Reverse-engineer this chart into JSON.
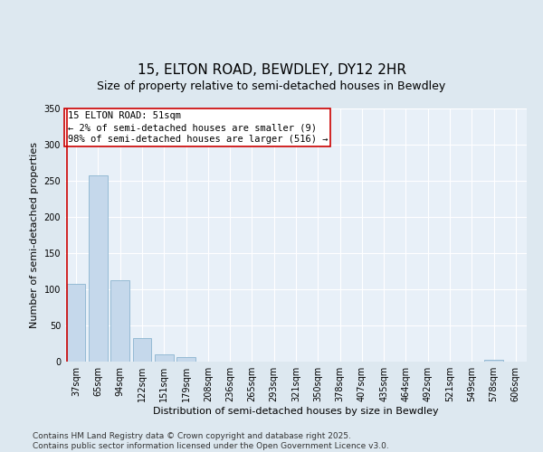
{
  "title": "15, ELTON ROAD, BEWDLEY, DY12 2HR",
  "subtitle": "Size of property relative to semi-detached houses in Bewdley",
  "xlabel": "Distribution of semi-detached houses by size in Bewdley",
  "ylabel": "Number of semi-detached properties",
  "categories": [
    "37sqm",
    "65sqm",
    "94sqm",
    "122sqm",
    "151sqm",
    "179sqm",
    "208sqm",
    "236sqm",
    "265sqm",
    "293sqm",
    "321sqm",
    "350sqm",
    "378sqm",
    "407sqm",
    "435sqm",
    "464sqm",
    "492sqm",
    "521sqm",
    "549sqm",
    "578sqm",
    "606sqm"
  ],
  "values": [
    108,
    257,
    112,
    32,
    10,
    6,
    0,
    0,
    0,
    0,
    0,
    0,
    0,
    0,
    0,
    0,
    0,
    0,
    0,
    3,
    0
  ],
  "bar_color": "#c5d8eb",
  "bar_edge_color": "#8ab4cf",
  "subject_bar_index": 0,
  "subject_line_color": "#cc0000",
  "annotation_text": "15 ELTON ROAD: 51sqm\n← 2% of semi-detached houses are smaller (9)\n98% of semi-detached houses are larger (516) →",
  "annotation_box_color": "#ffffff",
  "annotation_box_edge_color": "#cc0000",
  "ylim": [
    0,
    350
  ],
  "yticks": [
    0,
    50,
    100,
    150,
    200,
    250,
    300,
    350
  ],
  "footer": "Contains HM Land Registry data © Crown copyright and database right 2025.\nContains public sector information licensed under the Open Government Licence v3.0.",
  "bg_color": "#dde8f0",
  "plot_bg_color": "#e8f0f8",
  "grid_color": "#ffffff",
  "title_fontsize": 11,
  "subtitle_fontsize": 9,
  "axis_label_fontsize": 8,
  "tick_fontsize": 7,
  "annotation_fontsize": 7.5,
  "footer_fontsize": 6.5
}
